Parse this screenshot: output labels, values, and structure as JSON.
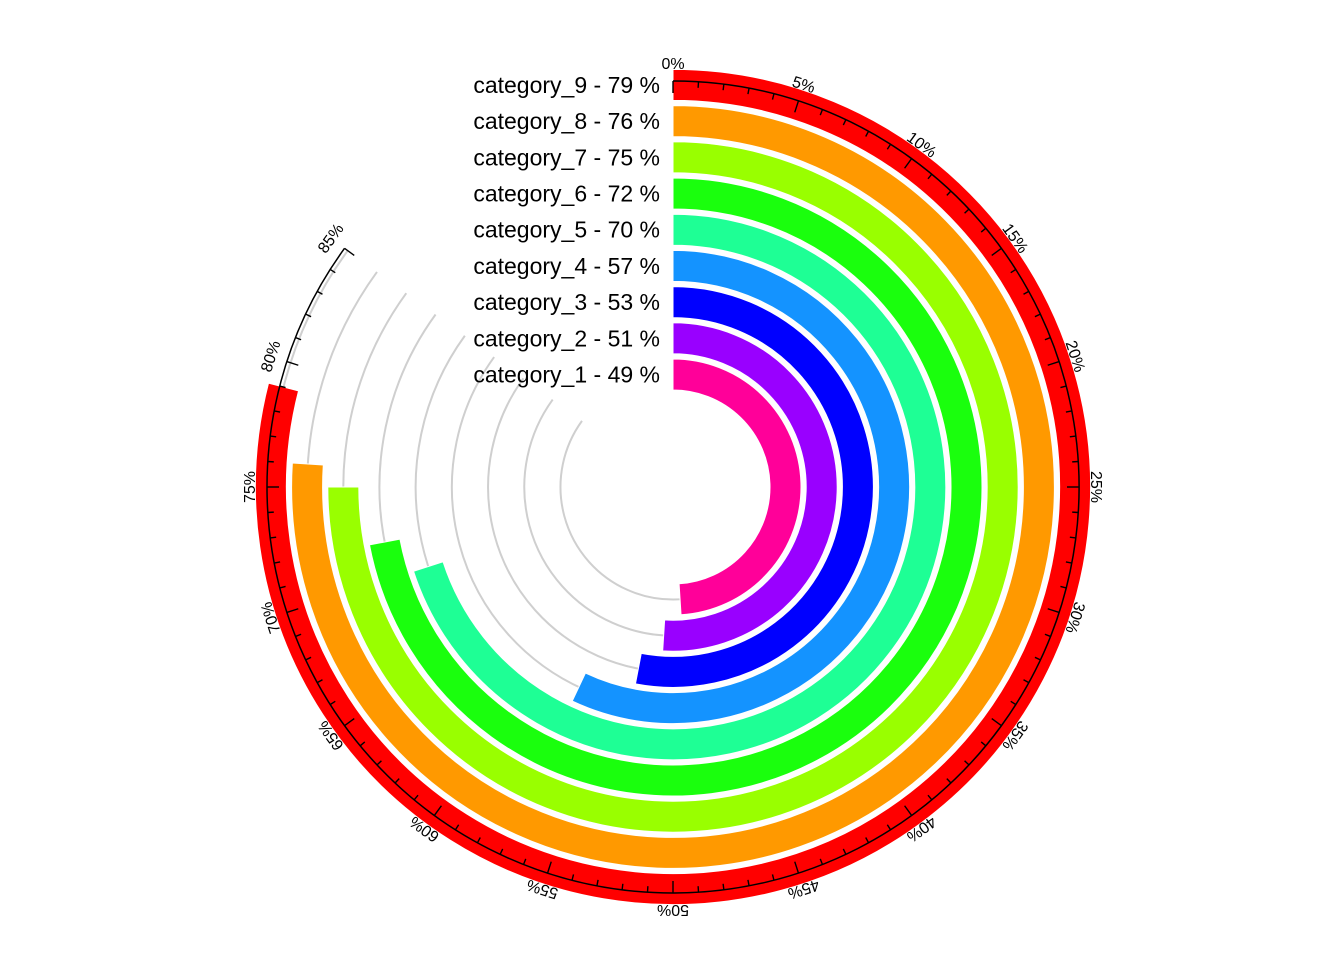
{
  "chart_data": {
    "type": "radial-bar",
    "title": "",
    "axis": {
      "min": 0,
      "max": 85,
      "unit": "%",
      "major_step": 5,
      "minor_step": 1,
      "tick_labels": [
        "0%",
        "5%",
        "10%",
        "15%",
        "20%",
        "25%",
        "30%",
        "35%",
        "40%",
        "45%",
        "50%",
        "55%",
        "60%",
        "65%",
        "70%",
        "75%",
        "80%",
        "85%"
      ]
    },
    "grid": true,
    "bars": [
      {
        "category": "category_1",
        "value": 49,
        "label": "category_1  -  49 %",
        "color": "#FF0099"
      },
      {
        "category": "category_2",
        "value": 51,
        "label": "category_2  -  51 %",
        "color": "#9900FF"
      },
      {
        "category": "category_3",
        "value": 53,
        "label": "category_3  -  53 %",
        "color": "#0000FF"
      },
      {
        "category": "category_4",
        "value": 57,
        "label": "category_4  -  57 %",
        "color": "#1493FF"
      },
      {
        "category": "category_5",
        "value": 70,
        "label": "category_5  -  70 %",
        "color": "#1EFF95"
      },
      {
        "category": "category_6",
        "value": 72,
        "label": "category_6  -  72 %",
        "color": "#1AFF0D"
      },
      {
        "category": "category_7",
        "value": 75,
        "label": "category_7  -  75 %",
        "color": "#99FF00"
      },
      {
        "category": "category_8",
        "value": 76,
        "label": "category_8  -  76 %",
        "color": "#FF9900"
      },
      {
        "category": "category_9",
        "value": 79,
        "label": "category_9  -  79 %",
        "color": "#FF0000"
      }
    ]
  }
}
